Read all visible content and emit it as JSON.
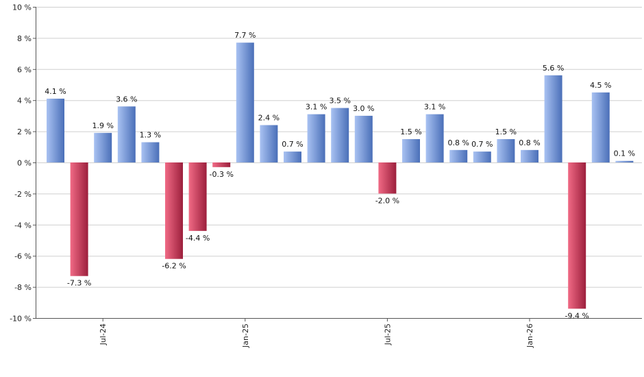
{
  "chart_data": {
    "type": "bar",
    "title": "",
    "xlabel": "",
    "ylabel": "",
    "ylim": [
      -10,
      10
    ],
    "yticks": [
      10,
      8,
      6,
      4,
      2,
      0,
      -2,
      -4,
      -6,
      -8,
      -10
    ],
    "ytick_labels": [
      "10 %",
      "8 %",
      "6 %",
      "4 %",
      "2 %",
      "0 %",
      "-2 %",
      "-4 %",
      "-6 %",
      "-8 %",
      "-10 %"
    ],
    "grid": true,
    "legend": "none",
    "x_tick_labels": [
      {
        "label": "Jul-24",
        "index": 2
      },
      {
        "label": "Jan-25",
        "index": 8
      },
      {
        "label": "Jul-25",
        "index": 14
      },
      {
        "label": "Jan-26",
        "index": 20
      }
    ],
    "values": [
      4.1,
      -7.3,
      1.9,
      3.6,
      1.3,
      -6.2,
      -4.4,
      -0.3,
      7.7,
      2.4,
      0.7,
      3.1,
      3.5,
      3.0,
      -2.0,
      1.5,
      3.1,
      0.8,
      0.7,
      1.5,
      0.8,
      5.6,
      -9.4,
      4.5,
      0.1
    ],
    "value_labels": [
      "4.1 %",
      "-7.3 %",
      "1.9 %",
      "3.6 %",
      "1.3 %",
      "-6.2 %",
      "-4.4 %",
      "-0.3 %",
      "7.7 %",
      "2.4 %",
      "0.7 %",
      "3.1 %",
      "3.5 %",
      "3.0 %",
      "-2.0 %",
      "1.5 %",
      "3.1 %",
      "0.8 %",
      "0.7 %",
      "1.5 %",
      "0.8 %",
      "5.6 %",
      "-9.4 %",
      "4.5 %",
      "0.1 %"
    ],
    "colors": {
      "positive_light": "#a9c2f2",
      "positive_dark": "#4a6fb8",
      "negative_light": "#f06a85",
      "negative_dark": "#9c1f3c"
    }
  }
}
